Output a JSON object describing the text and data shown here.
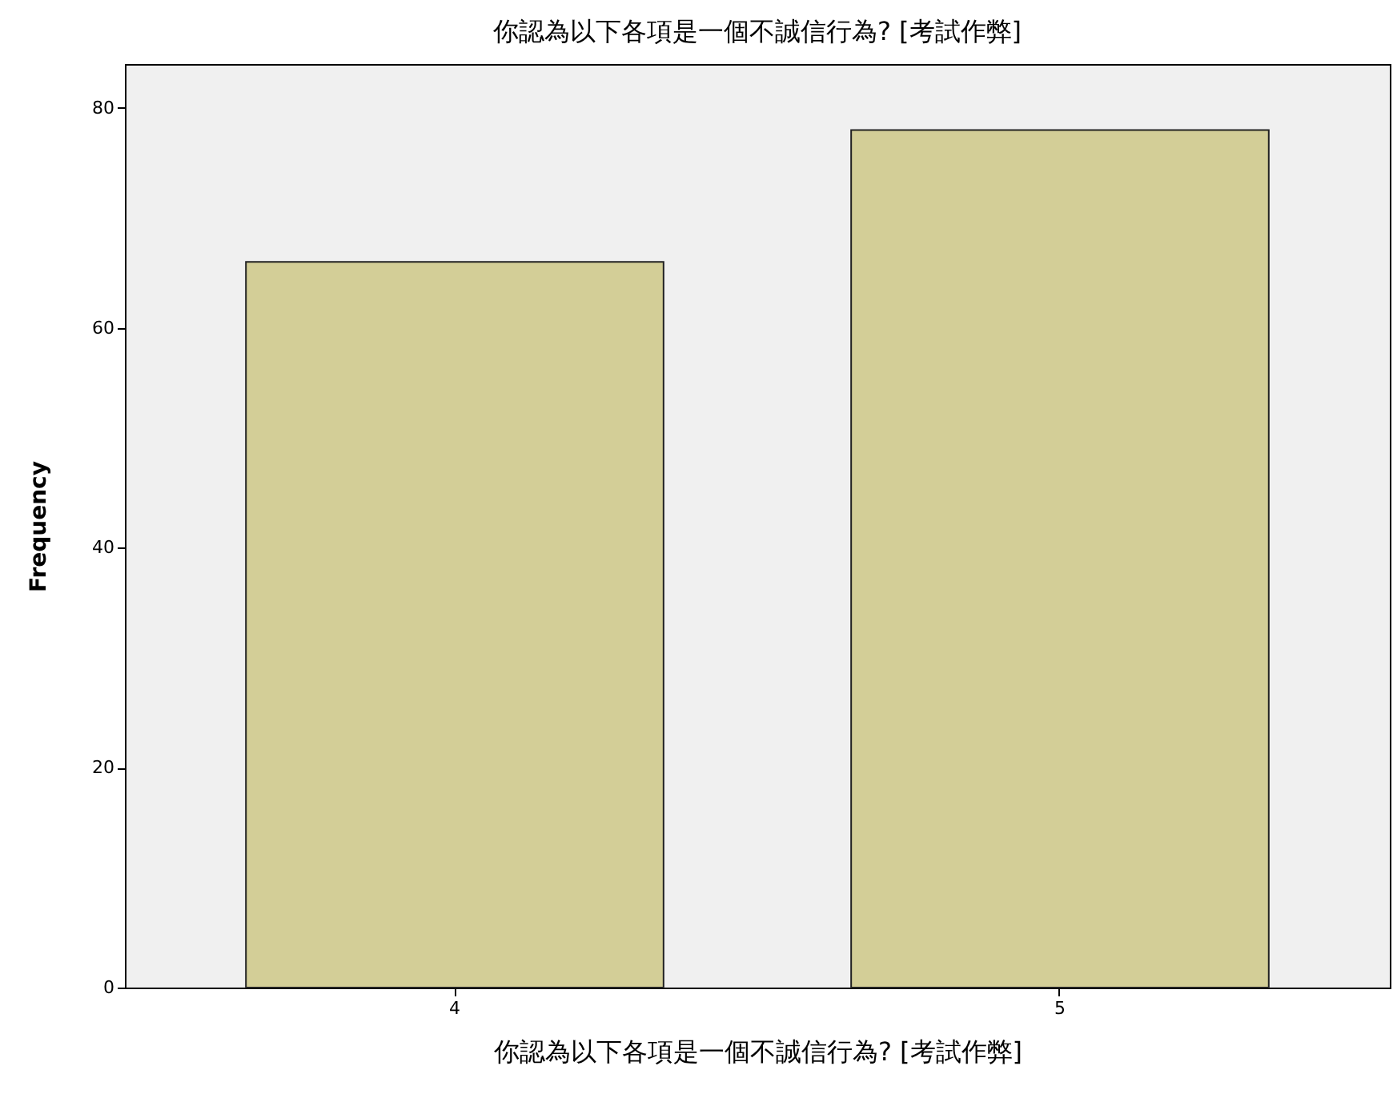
{
  "chart_data": {
    "type": "bar",
    "title": "你認為以下各項是一個不誠信行為? [考試作弊]",
    "xlabel": "你認為以下各項是一個不誠信行為? [考試作弊]",
    "ylabel": "Frequency",
    "categories": [
      "4",
      "5"
    ],
    "values": [
      66,
      78
    ],
    "color": "#d3ce97",
    "ylim": [
      0,
      84
    ],
    "yticks": [
      0,
      20,
      40,
      60,
      80
    ],
    "grid": false,
    "legend": false
  }
}
